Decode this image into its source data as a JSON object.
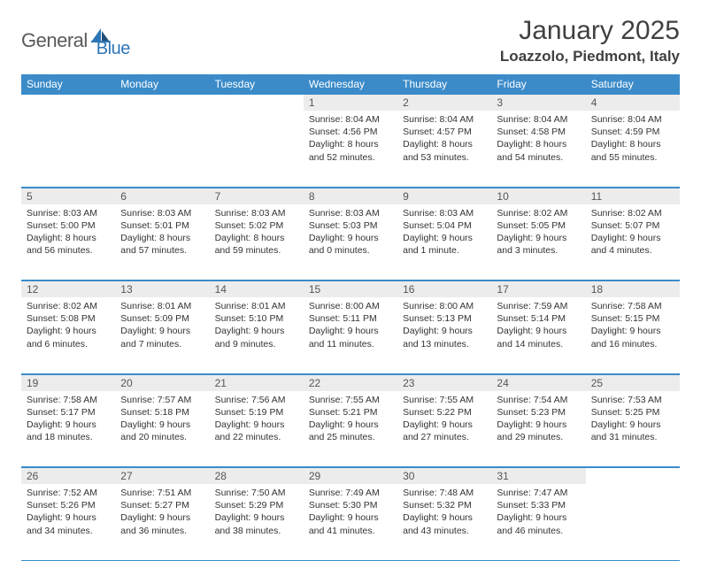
{
  "logo": {
    "word1": "General",
    "word2": "Blue"
  },
  "title": "January 2025",
  "location": "Loazzolo, Piedmont, Italy",
  "colors": {
    "header_bg": "#3b8bc9",
    "header_text": "#ffffff",
    "daynum_bg": "#ececec",
    "border": "#3b8bc9",
    "logo_gray": "#5a5a5a",
    "logo_blue": "#2e75b6",
    "title_color": "#404040",
    "body_text": "#333333",
    "page_bg": "#ffffff"
  },
  "typography": {
    "month_title_fontsize": 30,
    "location_fontsize": 17,
    "dayheader_fontsize": 12,
    "daynum_fontsize": 12,
    "cell_fontsize": 10.5
  },
  "day_headers": [
    "Sunday",
    "Monday",
    "Tuesday",
    "Wednesday",
    "Thursday",
    "Friday",
    "Saturday"
  ],
  "weeks": [
    [
      null,
      null,
      null,
      {
        "n": "1",
        "sr": "Sunrise: 8:04 AM",
        "ss": "Sunset: 4:56 PM",
        "dl1": "Daylight: 8 hours",
        "dl2": "and 52 minutes."
      },
      {
        "n": "2",
        "sr": "Sunrise: 8:04 AM",
        "ss": "Sunset: 4:57 PM",
        "dl1": "Daylight: 8 hours",
        "dl2": "and 53 minutes."
      },
      {
        "n": "3",
        "sr": "Sunrise: 8:04 AM",
        "ss": "Sunset: 4:58 PM",
        "dl1": "Daylight: 8 hours",
        "dl2": "and 54 minutes."
      },
      {
        "n": "4",
        "sr": "Sunrise: 8:04 AM",
        "ss": "Sunset: 4:59 PM",
        "dl1": "Daylight: 8 hours",
        "dl2": "and 55 minutes."
      }
    ],
    [
      {
        "n": "5",
        "sr": "Sunrise: 8:03 AM",
        "ss": "Sunset: 5:00 PM",
        "dl1": "Daylight: 8 hours",
        "dl2": "and 56 minutes."
      },
      {
        "n": "6",
        "sr": "Sunrise: 8:03 AM",
        "ss": "Sunset: 5:01 PM",
        "dl1": "Daylight: 8 hours",
        "dl2": "and 57 minutes."
      },
      {
        "n": "7",
        "sr": "Sunrise: 8:03 AM",
        "ss": "Sunset: 5:02 PM",
        "dl1": "Daylight: 8 hours",
        "dl2": "and 59 minutes."
      },
      {
        "n": "8",
        "sr": "Sunrise: 8:03 AM",
        "ss": "Sunset: 5:03 PM",
        "dl1": "Daylight: 9 hours",
        "dl2": "and 0 minutes."
      },
      {
        "n": "9",
        "sr": "Sunrise: 8:03 AM",
        "ss": "Sunset: 5:04 PM",
        "dl1": "Daylight: 9 hours",
        "dl2": "and 1 minute."
      },
      {
        "n": "10",
        "sr": "Sunrise: 8:02 AM",
        "ss": "Sunset: 5:05 PM",
        "dl1": "Daylight: 9 hours",
        "dl2": "and 3 minutes."
      },
      {
        "n": "11",
        "sr": "Sunrise: 8:02 AM",
        "ss": "Sunset: 5:07 PM",
        "dl1": "Daylight: 9 hours",
        "dl2": "and 4 minutes."
      }
    ],
    [
      {
        "n": "12",
        "sr": "Sunrise: 8:02 AM",
        "ss": "Sunset: 5:08 PM",
        "dl1": "Daylight: 9 hours",
        "dl2": "and 6 minutes."
      },
      {
        "n": "13",
        "sr": "Sunrise: 8:01 AM",
        "ss": "Sunset: 5:09 PM",
        "dl1": "Daylight: 9 hours",
        "dl2": "and 7 minutes."
      },
      {
        "n": "14",
        "sr": "Sunrise: 8:01 AM",
        "ss": "Sunset: 5:10 PM",
        "dl1": "Daylight: 9 hours",
        "dl2": "and 9 minutes."
      },
      {
        "n": "15",
        "sr": "Sunrise: 8:00 AM",
        "ss": "Sunset: 5:11 PM",
        "dl1": "Daylight: 9 hours",
        "dl2": "and 11 minutes."
      },
      {
        "n": "16",
        "sr": "Sunrise: 8:00 AM",
        "ss": "Sunset: 5:13 PM",
        "dl1": "Daylight: 9 hours",
        "dl2": "and 13 minutes."
      },
      {
        "n": "17",
        "sr": "Sunrise: 7:59 AM",
        "ss": "Sunset: 5:14 PM",
        "dl1": "Daylight: 9 hours",
        "dl2": "and 14 minutes."
      },
      {
        "n": "18",
        "sr": "Sunrise: 7:58 AM",
        "ss": "Sunset: 5:15 PM",
        "dl1": "Daylight: 9 hours",
        "dl2": "and 16 minutes."
      }
    ],
    [
      {
        "n": "19",
        "sr": "Sunrise: 7:58 AM",
        "ss": "Sunset: 5:17 PM",
        "dl1": "Daylight: 9 hours",
        "dl2": "and 18 minutes."
      },
      {
        "n": "20",
        "sr": "Sunrise: 7:57 AM",
        "ss": "Sunset: 5:18 PM",
        "dl1": "Daylight: 9 hours",
        "dl2": "and 20 minutes."
      },
      {
        "n": "21",
        "sr": "Sunrise: 7:56 AM",
        "ss": "Sunset: 5:19 PM",
        "dl1": "Daylight: 9 hours",
        "dl2": "and 22 minutes."
      },
      {
        "n": "22",
        "sr": "Sunrise: 7:55 AM",
        "ss": "Sunset: 5:21 PM",
        "dl1": "Daylight: 9 hours",
        "dl2": "and 25 minutes."
      },
      {
        "n": "23",
        "sr": "Sunrise: 7:55 AM",
        "ss": "Sunset: 5:22 PM",
        "dl1": "Daylight: 9 hours",
        "dl2": "and 27 minutes."
      },
      {
        "n": "24",
        "sr": "Sunrise: 7:54 AM",
        "ss": "Sunset: 5:23 PM",
        "dl1": "Daylight: 9 hours",
        "dl2": "and 29 minutes."
      },
      {
        "n": "25",
        "sr": "Sunrise: 7:53 AM",
        "ss": "Sunset: 5:25 PM",
        "dl1": "Daylight: 9 hours",
        "dl2": "and 31 minutes."
      }
    ],
    [
      {
        "n": "26",
        "sr": "Sunrise: 7:52 AM",
        "ss": "Sunset: 5:26 PM",
        "dl1": "Daylight: 9 hours",
        "dl2": "and 34 minutes."
      },
      {
        "n": "27",
        "sr": "Sunrise: 7:51 AM",
        "ss": "Sunset: 5:27 PM",
        "dl1": "Daylight: 9 hours",
        "dl2": "and 36 minutes."
      },
      {
        "n": "28",
        "sr": "Sunrise: 7:50 AM",
        "ss": "Sunset: 5:29 PM",
        "dl1": "Daylight: 9 hours",
        "dl2": "and 38 minutes."
      },
      {
        "n": "29",
        "sr": "Sunrise: 7:49 AM",
        "ss": "Sunset: 5:30 PM",
        "dl1": "Daylight: 9 hours",
        "dl2": "and 41 minutes."
      },
      {
        "n": "30",
        "sr": "Sunrise: 7:48 AM",
        "ss": "Sunset: 5:32 PM",
        "dl1": "Daylight: 9 hours",
        "dl2": "and 43 minutes."
      },
      {
        "n": "31",
        "sr": "Sunrise: 7:47 AM",
        "ss": "Sunset: 5:33 PM",
        "dl1": "Daylight: 9 hours",
        "dl2": "and 46 minutes."
      },
      null
    ]
  ]
}
